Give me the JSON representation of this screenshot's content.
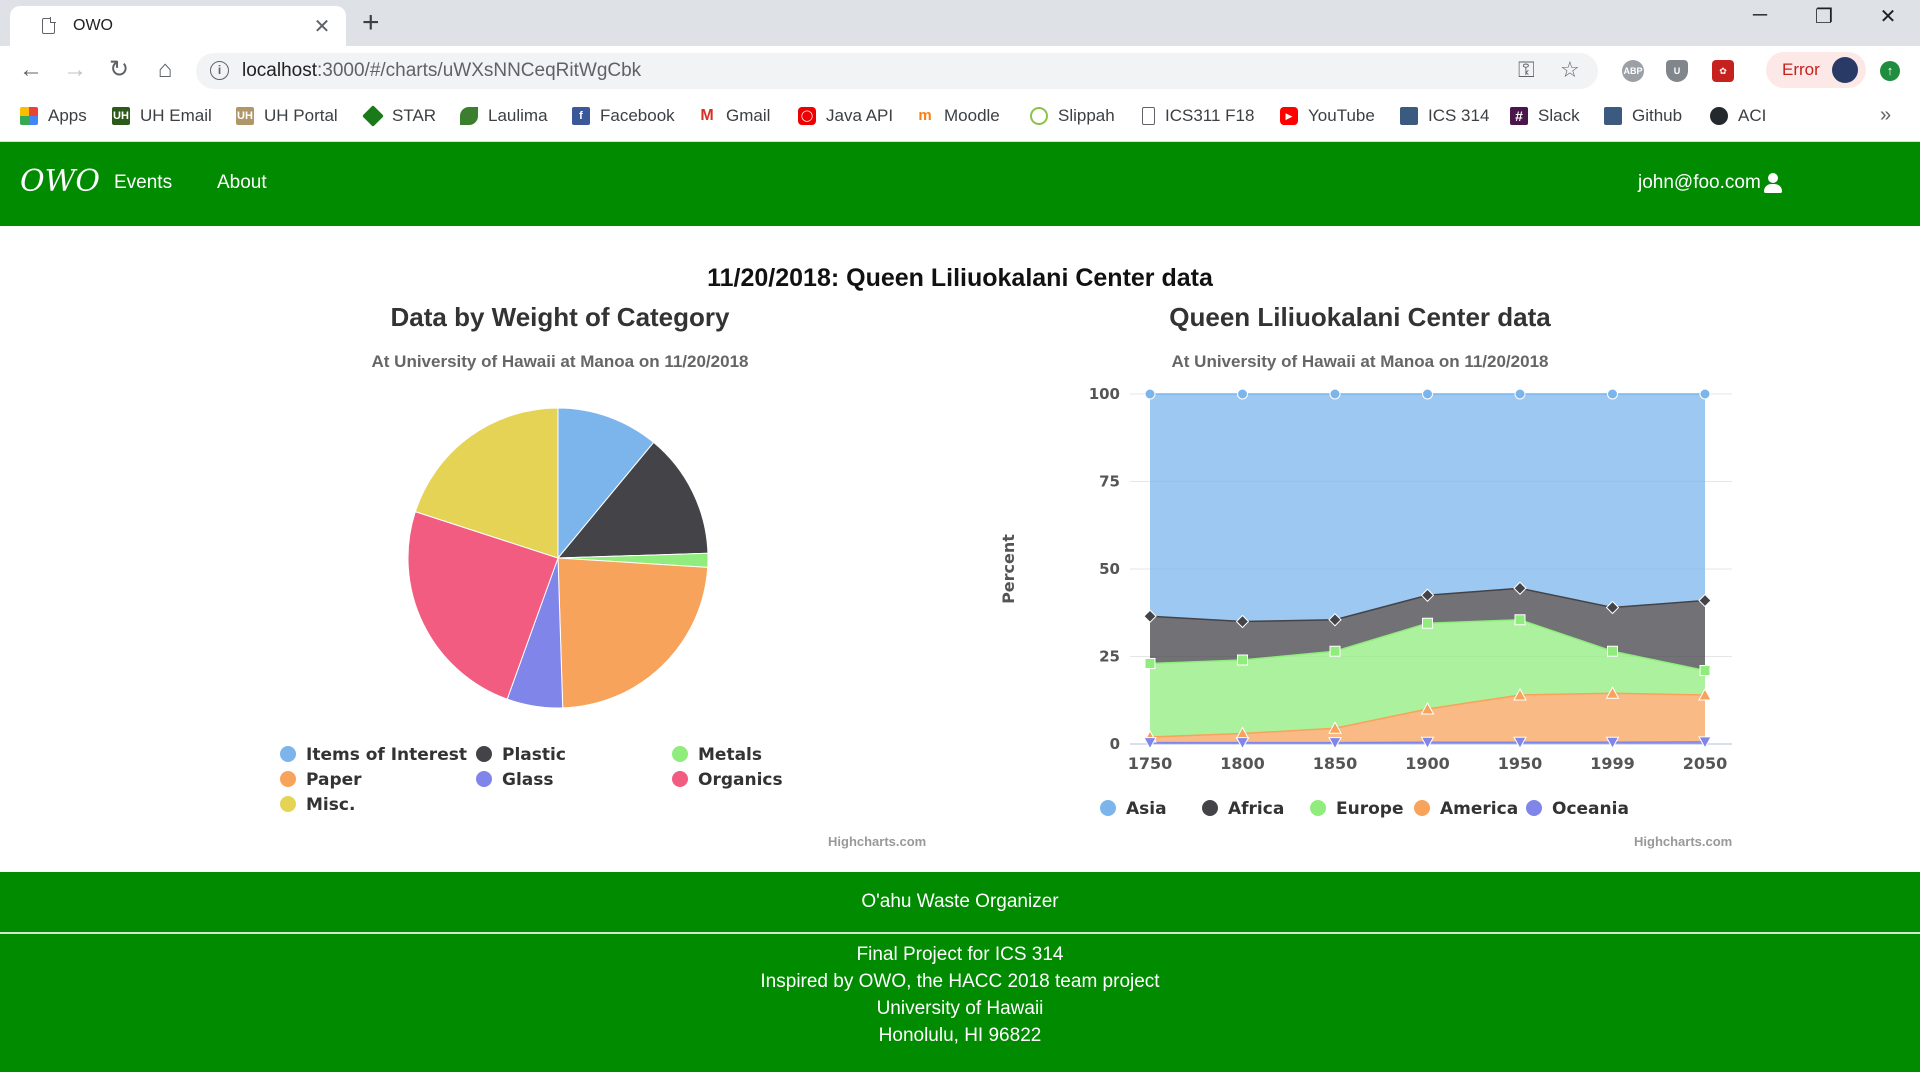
{
  "browser": {
    "tab_title": "OWO",
    "url_host": "localhost",
    "url_path": ":3000/#/charts/uWXsNNCeqRitWgCbk",
    "error_label": "Error",
    "bookmarks": [
      "Apps",
      "UH Email",
      "UH Portal",
      "STAR",
      "Laulima",
      "Facebook",
      "Gmail",
      "Java API",
      "Moodle",
      "Slippah",
      "ICS311 F18",
      "YouTube",
      "ICS 314",
      "Slack",
      "Github",
      "ACI"
    ],
    "extensions": [
      "ABP",
      "uBlock",
      "Cookie"
    ]
  },
  "navbar": {
    "logo": "OWO",
    "links": [
      "Events",
      "About"
    ],
    "user": "john@foo.com"
  },
  "page": {
    "heading": "11/20/2018: Queen Liliuokalani Center data"
  },
  "pie": {
    "title": "Data by Weight of Category",
    "subtitle": "At University of Hawaii at Manoa on 11/20/2018",
    "credits": "Highcharts.com"
  },
  "area": {
    "title": "Queen Liliuokalani Center data",
    "subtitle": "At University of Hawaii at Manoa on 11/20/2018",
    "credits": "Highcharts.com"
  },
  "chart_data": [
    {
      "type": "pie",
      "title": "Data by Weight of Category",
      "subtitle": "At University of Hawaii at Manoa on 11/20/2018",
      "slices": [
        {
          "name": "Items of Interest",
          "value": 11.0,
          "color": "#7cb5ec"
        },
        {
          "name": "Plastic",
          "value": 13.5,
          "color": "#434348"
        },
        {
          "name": "Metals",
          "value": 1.5,
          "color": "#90ed7d"
        },
        {
          "name": "Paper",
          "value": 23.5,
          "color": "#f7a35c"
        },
        {
          "name": "Glass",
          "value": 6.0,
          "color": "#8085e9"
        },
        {
          "name": "Organics",
          "value": 24.5,
          "color": "#f15c80"
        },
        {
          "name": "Misc.",
          "value": 20.0,
          "color": "#e4d354"
        }
      ],
      "legend": [
        "Items of Interest",
        "Plastic",
        "Metals",
        "Paper",
        "Glass",
        "Organics",
        "Misc."
      ]
    },
    {
      "type": "area",
      "stacking": "percent",
      "title": "Queen Liliuokalani Center data",
      "subtitle": "At University of Hawaii at Manoa on 11/20/2018",
      "ylabel": "Percent",
      "ylim": [
        0,
        100
      ],
      "yticks": [
        0,
        25,
        50,
        75,
        100
      ],
      "categories": [
        "1750",
        "1800",
        "1850",
        "1900",
        "1950",
        "1999",
        "2050"
      ],
      "series": [
        {
          "name": "Asia",
          "color": "#7cb5ec",
          "marker": "circle",
          "top": [
            100,
            100,
            100,
            100,
            100,
            100,
            100
          ]
        },
        {
          "name": "Africa",
          "color": "#434348",
          "marker": "diamond",
          "top": [
            36.5,
            35,
            35.5,
            42.5,
            44.5,
            39,
            41
          ]
        },
        {
          "name": "Europe",
          "color": "#90ed7d",
          "marker": "square",
          "top": [
            23,
            24,
            26.5,
            34.5,
            35.5,
            26.5,
            21
          ]
        },
        {
          "name": "America",
          "color": "#f7a35c",
          "marker": "triangle",
          "top": [
            2,
            3,
            4.5,
            10,
            14,
            14.5,
            14
          ]
        },
        {
          "name": "Oceania",
          "color": "#8085e9",
          "marker": "triangle-down",
          "top": [
            0.4,
            0.4,
            0.4,
            0.5,
            0.5,
            0.5,
            0.6
          ]
        }
      ],
      "legend": [
        "Asia",
        "Africa",
        "Europe",
        "America",
        "Oceania"
      ]
    }
  ],
  "footer": {
    "title": "O'ahu Waste Organizer",
    "lines": [
      "Final Project for ICS 314",
      "Inspired by OWO, the HACC 2018 team project",
      "University of Hawaii",
      "Honolulu, HI 96822"
    ]
  }
}
